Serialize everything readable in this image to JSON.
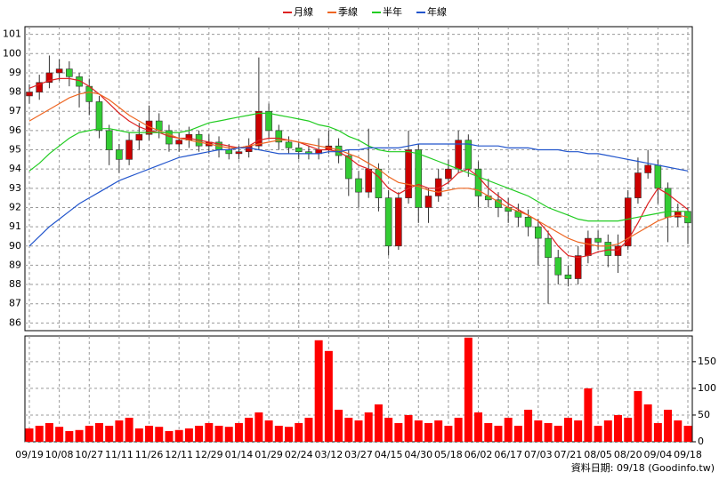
{
  "chart_data": {
    "type": "candlestick",
    "categories": [
      "09/19",
      null,
      null,
      "10/08",
      null,
      null,
      "10/27",
      null,
      null,
      "11/11",
      null,
      null,
      "11/26",
      null,
      null,
      "12/11",
      null,
      null,
      "12/29",
      null,
      null,
      "01/14",
      null,
      null,
      "01/29",
      null,
      null,
      "02/24",
      null,
      null,
      "03/12",
      null,
      null,
      "03/27",
      null,
      null,
      "04/15",
      null,
      null,
      "04/30",
      null,
      null,
      "05/18",
      null,
      null,
      "06/02",
      null,
      null,
      "06/17",
      null,
      null,
      "07/03",
      null,
      null,
      "07/21",
      null,
      null,
      "08/05",
      null,
      null,
      "08/20",
      null,
      null,
      "09/04",
      null,
      null,
      "09/18"
    ],
    "open": [
      97.8,
      98.0,
      98.5,
      99.0,
      99.2,
      98.8,
      98.3,
      97.5,
      96.0,
      95.0,
      94.5,
      95.5,
      95.8,
      96.5,
      96.0,
      95.3,
      95.5,
      95.8,
      95.2,
      95.4,
      95.0,
      94.8,
      94.9,
      95.2,
      97.0,
      96.0,
      95.4,
      95.1,
      94.9,
      94.8,
      95.0,
      95.2,
      94.7,
      93.5,
      92.8,
      94.0,
      92.5,
      90.0,
      92.5,
      95.0,
      92.0,
      92.6,
      93.5,
      94.0,
      95.5,
      94.0,
      92.6,
      92.4,
      92.0,
      91.8,
      91.5,
      91.0,
      90.4,
      89.4,
      88.5,
      88.3,
      89.5,
      90.4,
      90.2,
      89.5,
      90.0,
      92.5,
      93.8,
      94.2,
      93.0,
      91.5,
      91.8
    ],
    "high": [
      98.4,
      98.9,
      99.9,
      99.7,
      99.6,
      99.0,
      98.7,
      97.8,
      96.3,
      95.3,
      95.9,
      96.4,
      97.3,
      96.9,
      96.3,
      95.9,
      96.2,
      96.0,
      95.8,
      95.7,
      95.3,
      95.2,
      95.6,
      99.8,
      97.4,
      96.3,
      95.7,
      95.4,
      95.2,
      95.6,
      96.0,
      95.6,
      95.0,
      93.9,
      96.1,
      94.3,
      92.9,
      92.8,
      96.0,
      95.3,
      93.0,
      94.0,
      94.5,
      96.0,
      95.8,
      94.4,
      93.5,
      92.8,
      92.5,
      92.2,
      91.9,
      91.4,
      90.8,
      89.8,
      89.0,
      90.0,
      90.8,
      90.8,
      90.6,
      90.6,
      92.9,
      94.6,
      95.0,
      94.5,
      93.3,
      92.2,
      92.0
    ],
    "low": [
      97.4,
      97.6,
      98.2,
      98.6,
      98.3,
      97.2,
      96.8,
      95.6,
      94.2,
      93.8,
      94.2,
      95.0,
      95.5,
      95.6,
      94.9,
      94.9,
      95.1,
      94.9,
      94.8,
      94.6,
      94.5,
      94.5,
      94.6,
      95.0,
      95.6,
      95.0,
      94.8,
      94.5,
      94.5,
      94.5,
      94.8,
      94.3,
      92.6,
      92.0,
      92.5,
      91.8,
      89.5,
      89.8,
      92.2,
      91.2,
      91.2,
      92.3,
      93.2,
      93.8,
      93.6,
      92.0,
      92.0,
      91.5,
      91.2,
      91.0,
      90.5,
      89.0,
      87.0,
      88.0,
      87.9,
      88.0,
      89.1,
      89.8,
      88.9,
      88.6,
      89.8,
      92.2,
      93.5,
      92.2,
      90.2,
      91.0,
      90.1
    ],
    "close": [
      98.0,
      98.5,
      99.0,
      99.2,
      98.8,
      98.3,
      97.5,
      96.0,
      95.0,
      94.5,
      95.5,
      95.8,
      96.5,
      96.0,
      95.3,
      95.5,
      95.8,
      95.2,
      95.4,
      95.0,
      94.8,
      94.9,
      95.2,
      97.0,
      96.0,
      95.4,
      95.1,
      94.9,
      94.8,
      95.0,
      95.2,
      94.7,
      93.5,
      92.8,
      94.0,
      92.5,
      90.0,
      92.5,
      95.0,
      92.0,
      92.6,
      93.5,
      94.0,
      95.5,
      94.0,
      92.6,
      92.4,
      92.0,
      91.8,
      91.5,
      91.0,
      90.4,
      89.4,
      88.5,
      88.3,
      89.5,
      90.4,
      90.2,
      89.5,
      90.0,
      92.5,
      93.8,
      94.2,
      93.0,
      91.5,
      91.8,
      91.2
    ],
    "up_color": "#cc0000",
    "down_color": "#33cc33",
    "series": [
      {
        "name": "月線",
        "color": "#dd2222",
        "values": [
          98.2,
          98.4,
          98.6,
          98.7,
          98.7,
          98.6,
          98.3,
          97.9,
          97.4,
          96.9,
          96.5,
          96.2,
          96.0,
          95.9,
          95.7,
          95.6,
          95.6,
          95.5,
          95.4,
          95.3,
          95.2,
          95.1,
          95.2,
          95.5,
          95.6,
          95.6,
          95.5,
          95.4,
          95.2,
          95.0,
          95.0,
          94.9,
          94.6,
          94.2,
          94.0,
          93.6,
          93.0,
          92.7,
          93.0,
          93.2,
          93.0,
          93.0,
          93.3,
          93.8,
          94.0,
          93.6,
          93.0,
          92.6,
          92.2,
          91.9,
          91.6,
          91.3,
          90.7,
          90.0,
          89.5,
          89.4,
          89.5,
          89.7,
          89.8,
          89.8,
          90.3,
          91.2,
          92.2,
          93.0,
          92.7,
          92.3,
          91.9
        ]
      },
      {
        "name": "季線",
        "color": "#ee6622",
        "values": [
          96.5,
          96.8,
          97.1,
          97.4,
          97.7,
          97.9,
          98.0,
          97.9,
          97.6,
          97.2,
          96.8,
          96.5,
          96.2,
          96.0,
          95.8,
          95.6,
          95.5,
          95.4,
          95.3,
          95.2,
          95.1,
          95.1,
          95.2,
          95.3,
          95.4,
          95.5,
          95.5,
          95.4,
          95.3,
          95.2,
          95.1,
          95.0,
          94.8,
          94.6,
          94.3,
          94.0,
          93.6,
          93.3,
          93.2,
          93.1,
          92.9,
          92.8,
          92.9,
          93.0,
          93.0,
          92.9,
          92.6,
          92.3,
          92.0,
          91.8,
          91.6,
          91.3,
          91.0,
          90.7,
          90.4,
          90.2,
          90.1,
          90.0,
          90.0,
          90.1,
          90.4,
          90.7,
          91.0,
          91.3,
          91.5,
          91.6,
          91.5
        ]
      },
      {
        "name": "半年",
        "color": "#22cc22",
        "values": [
          93.9,
          94.3,
          94.8,
          95.2,
          95.6,
          95.9,
          96.0,
          96.1,
          96.1,
          96.0,
          95.9,
          95.9,
          95.9,
          95.9,
          95.9,
          95.9,
          96.0,
          96.2,
          96.4,
          96.5,
          96.6,
          96.7,
          96.8,
          96.9,
          96.9,
          96.8,
          96.7,
          96.6,
          96.5,
          96.3,
          96.2,
          96.0,
          95.7,
          95.5,
          95.2,
          95.0,
          94.9,
          94.9,
          94.9,
          94.8,
          94.6,
          94.4,
          94.2,
          94.0,
          93.8,
          93.6,
          93.4,
          93.2,
          93.0,
          92.8,
          92.6,
          92.3,
          92.0,
          91.8,
          91.6,
          91.4,
          91.3,
          91.3,
          91.3,
          91.3,
          91.4,
          91.5,
          91.6,
          91.7,
          91.8,
          91.8,
          91.8
        ]
      },
      {
        "name": "年線",
        "color": "#2255cc",
        "values": [
          90.0,
          90.5,
          91.0,
          91.4,
          91.8,
          92.2,
          92.5,
          92.8,
          93.1,
          93.4,
          93.6,
          93.8,
          94.0,
          94.2,
          94.4,
          94.6,
          94.7,
          94.8,
          94.9,
          95.0,
          95.0,
          95.1,
          95.1,
          95.0,
          94.9,
          94.8,
          94.8,
          94.8,
          94.8,
          94.8,
          94.9,
          94.9,
          95.0,
          95.0,
          95.1,
          95.1,
          95.1,
          95.1,
          95.2,
          95.3,
          95.3,
          95.3,
          95.3,
          95.3,
          95.3,
          95.2,
          95.2,
          95.2,
          95.1,
          95.1,
          95.1,
          95.0,
          95.0,
          95.0,
          94.9,
          94.9,
          94.8,
          94.8,
          94.7,
          94.6,
          94.5,
          94.4,
          94.3,
          94.2,
          94.1,
          94.0,
          93.9
        ]
      }
    ],
    "ylim": [
      85.6,
      101.4
    ],
    "yticks": [
      86,
      87,
      88,
      89,
      90,
      91,
      92,
      93,
      94,
      95,
      96,
      97,
      98,
      99,
      100,
      101
    ],
    "grid": true,
    "volume": {
      "color": "#ff0000",
      "values": [
        25,
        30,
        35,
        28,
        20,
        22,
        30,
        35,
        30,
        40,
        45,
        25,
        30,
        28,
        20,
        22,
        25,
        30,
        35,
        30,
        28,
        35,
        45,
        55,
        40,
        30,
        28,
        35,
        45,
        190,
        170,
        60,
        45,
        40,
        55,
        70,
        45,
        35,
        50,
        40,
        35,
        40,
        30,
        45,
        195,
        55,
        35,
        30,
        45,
        30,
        60,
        40,
        35,
        30,
        45,
        40,
        100,
        30,
        40,
        50,
        45,
        95,
        70,
        35,
        60,
        40,
        30
      ],
      "ylim": [
        0,
        198
      ],
      "yticks": [
        0,
        50,
        100,
        150
      ]
    },
    "source": "資料日期: 09/18  (Goodinfo.tw)"
  }
}
